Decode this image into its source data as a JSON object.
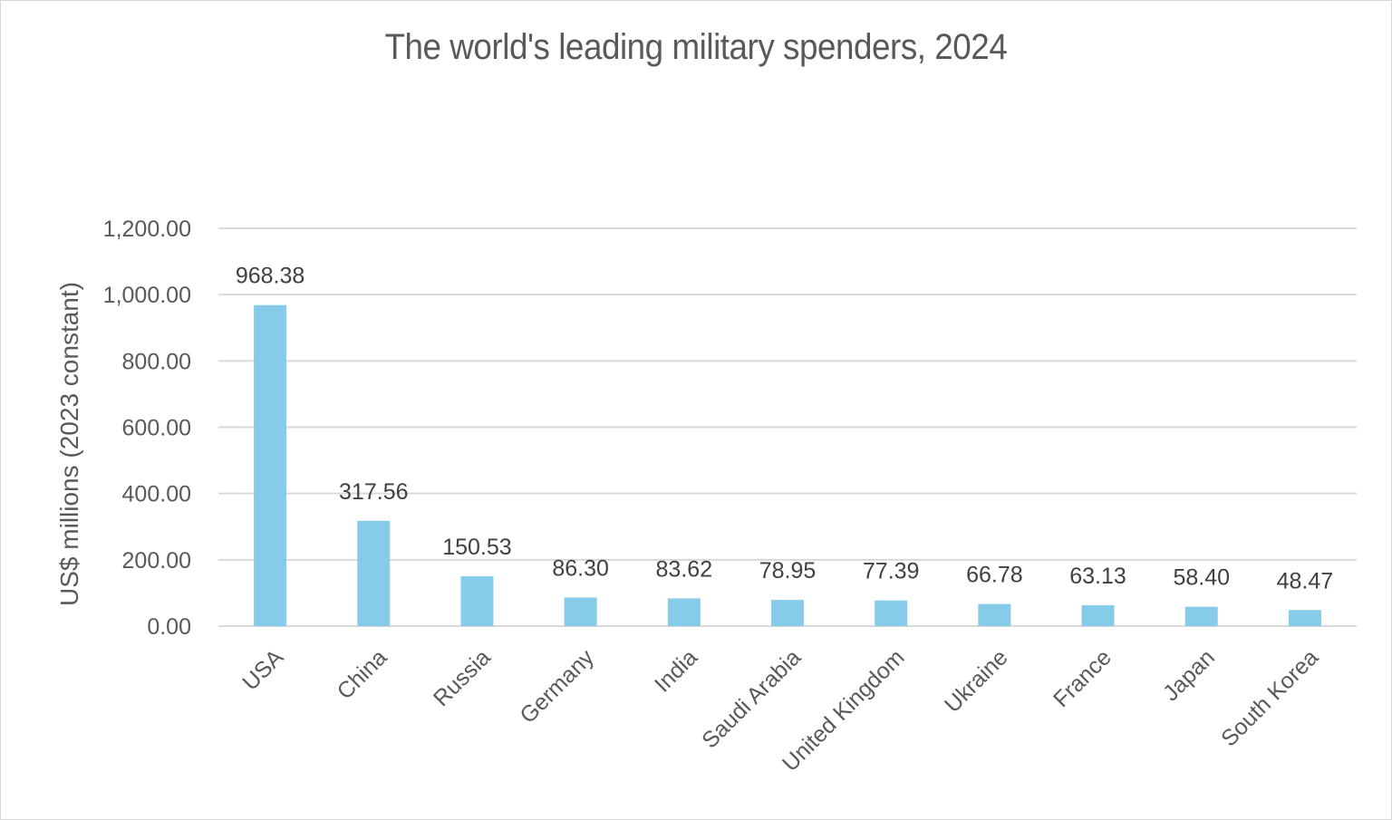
{
  "chart_data": {
    "type": "bar",
    "title": "The world's leading military spenders, 2024",
    "xlabel": "",
    "ylabel": "US$ millions (2023 constant)",
    "categories": [
      "USA",
      "China",
      "Russia",
      "Germany",
      "India",
      "Saudi Arabia",
      "United Kingdom",
      "Ukraine",
      "France",
      "Japan",
      "South Korea"
    ],
    "values": [
      968.38,
      317.56,
      150.53,
      86.3,
      83.62,
      78.95,
      77.39,
      66.78,
      63.13,
      58.4,
      48.47
    ],
    "data_labels": [
      "968.38",
      "317.56",
      "150.53",
      "86.30",
      "83.62",
      "78.95",
      "77.39",
      "66.78",
      "63.13",
      "58.40",
      "48.47"
    ],
    "ylim": [
      0,
      1200
    ],
    "yticks": [
      0,
      200,
      400,
      600,
      800,
      1000,
      1200
    ],
    "ytick_labels": [
      "0.00",
      "200.00",
      "400.00",
      "600.00",
      "800.00",
      "1,000.00",
      "1,200.00"
    ],
    "grid": true,
    "legend": "none",
    "colors": {
      "bar": "#87CBEB",
      "grid": "#d9d9d9",
      "text": "#595959",
      "data_label": "#404040"
    }
  }
}
